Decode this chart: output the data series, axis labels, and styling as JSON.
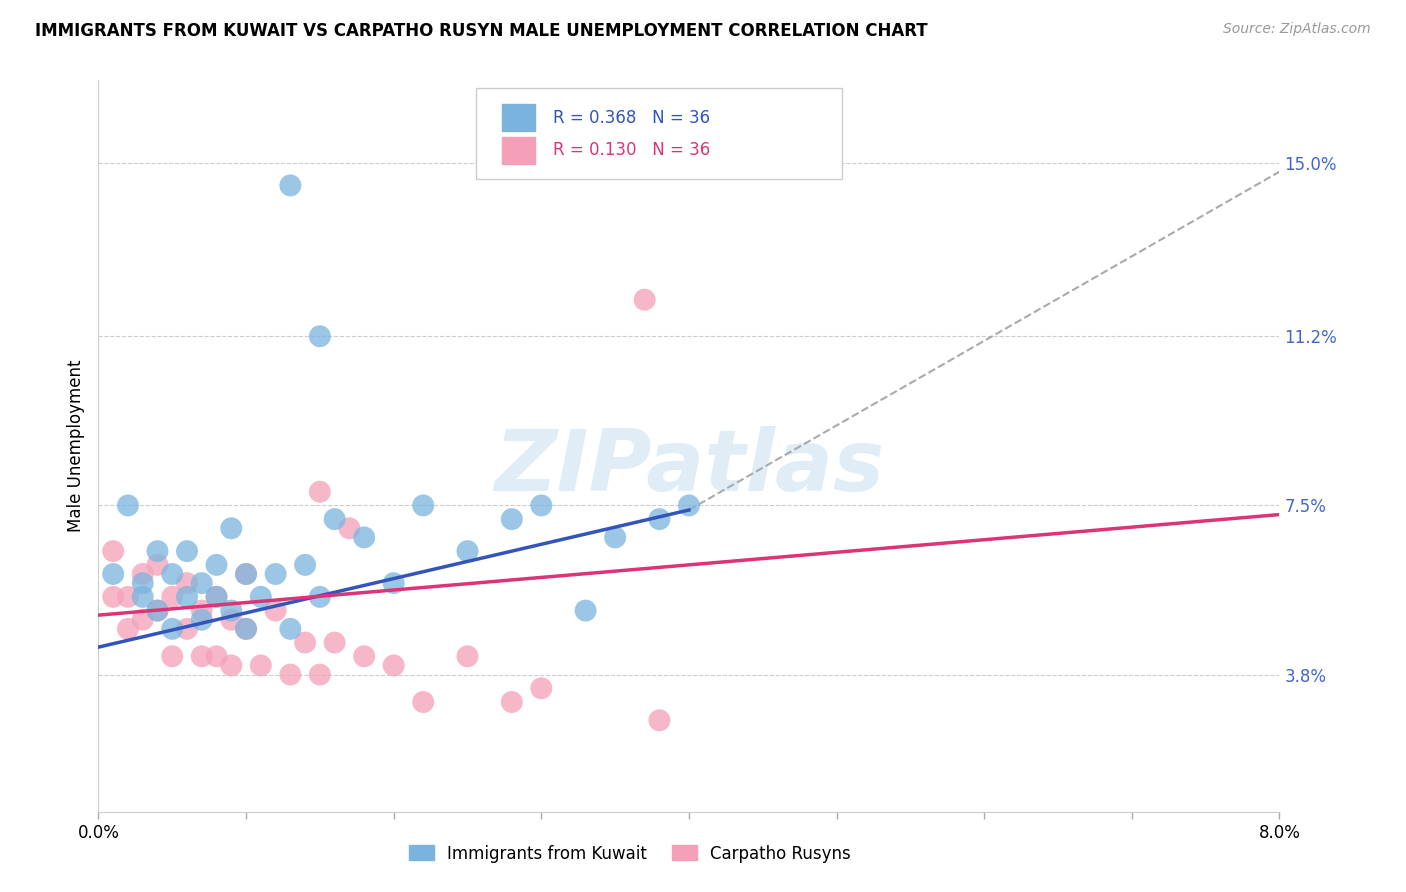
{
  "title": "IMMIGRANTS FROM KUWAIT VS CARPATHO RUSYN MALE UNEMPLOYMENT CORRELATION CHART",
  "source": "Source: ZipAtlas.com",
  "ylabel": "Male Unemployment",
  "ytick_labels": [
    "15.0%",
    "11.2%",
    "7.5%",
    "3.8%"
  ],
  "ytick_values": [
    0.15,
    0.112,
    0.075,
    0.038
  ],
  "legend1_label": "Immigrants from Kuwait",
  "legend2_label": "Carpatho Rusyns",
  "r1": "0.368",
  "n1": "36",
  "r2": "0.130",
  "n2": "36",
  "blue_color": "#7ab4de",
  "pink_color": "#f4a0b8",
  "blue_line_color": "#3355bb",
  "pink_line_color": "#dd3377",
  "dashed_line_color": "#aaaaaa",
  "right_axis_color": "#4466cc",
  "watermark_text": "ZIPatlas",
  "xmin": 0.0,
  "xmax": 0.08,
  "ymin": 0.008,
  "ymax": 0.168,
  "blue_scatter_x": [
    0.001,
    0.002,
    0.003,
    0.003,
    0.004,
    0.004,
    0.005,
    0.005,
    0.006,
    0.006,
    0.007,
    0.007,
    0.008,
    0.008,
    0.009,
    0.009,
    0.01,
    0.01,
    0.011,
    0.012,
    0.013,
    0.014,
    0.015,
    0.016,
    0.018,
    0.02,
    0.022,
    0.025,
    0.028,
    0.03,
    0.033,
    0.035,
    0.038,
    0.04,
    0.013,
    0.015
  ],
  "blue_scatter_y": [
    0.06,
    0.075,
    0.058,
    0.055,
    0.065,
    0.052,
    0.06,
    0.048,
    0.055,
    0.065,
    0.058,
    0.05,
    0.055,
    0.062,
    0.07,
    0.052,
    0.06,
    0.048,
    0.055,
    0.06,
    0.048,
    0.062,
    0.055,
    0.072,
    0.068,
    0.058,
    0.075,
    0.065,
    0.072,
    0.075,
    0.052,
    0.068,
    0.072,
    0.075,
    0.145,
    0.112
  ],
  "pink_scatter_x": [
    0.001,
    0.001,
    0.002,
    0.002,
    0.003,
    0.003,
    0.004,
    0.004,
    0.005,
    0.005,
    0.006,
    0.006,
    0.007,
    0.007,
    0.008,
    0.008,
    0.009,
    0.009,
    0.01,
    0.01,
    0.011,
    0.012,
    0.013,
    0.014,
    0.015,
    0.016,
    0.018,
    0.02,
    0.022,
    0.025,
    0.028,
    0.03,
    0.015,
    0.017,
    0.038,
    0.037
  ],
  "pink_scatter_y": [
    0.055,
    0.065,
    0.055,
    0.048,
    0.06,
    0.05,
    0.052,
    0.062,
    0.055,
    0.042,
    0.048,
    0.058,
    0.052,
    0.042,
    0.055,
    0.042,
    0.05,
    0.04,
    0.048,
    0.06,
    0.04,
    0.052,
    0.038,
    0.045,
    0.038,
    0.045,
    0.042,
    0.04,
    0.032,
    0.042,
    0.032,
    0.035,
    0.078,
    0.07,
    0.028,
    0.12
  ],
  "blue_line": {
    "x0": 0.0,
    "x1": 0.04,
    "y0": 0.044,
    "y1": 0.074
  },
  "pink_line": {
    "x0": 0.0,
    "x1": 0.08,
    "y0": 0.051,
    "y1": 0.073
  },
  "dashed_line": {
    "x0": 0.04,
    "x1": 0.08,
    "y0": 0.074,
    "y1": 0.148
  }
}
